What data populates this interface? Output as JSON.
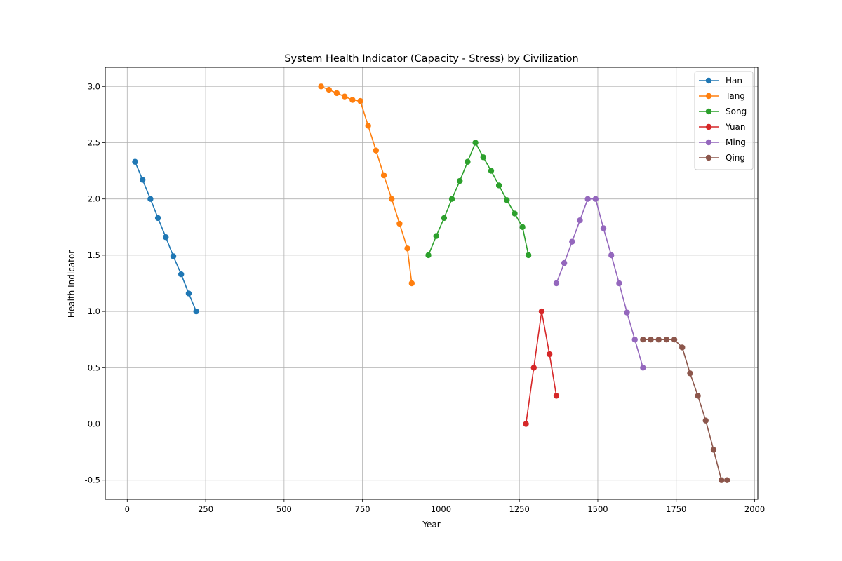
{
  "chart_data": {
    "type": "line",
    "title": "System Health Indicator (Capacity - Stress) by Civilization",
    "xlabel": "Year",
    "ylabel": "Health Indicator",
    "xlim": [
      -70,
      2010
    ],
    "ylim": [
      -0.67,
      3.17
    ],
    "xticks": [
      0,
      250,
      500,
      750,
      1000,
      1250,
      1500,
      1750,
      2000
    ],
    "yticks": [
      -0.5,
      0.0,
      0.5,
      1.0,
      1.5,
      2.0,
      2.5,
      3.0
    ],
    "grid": true,
    "legend_position": "top-right",
    "series": [
      {
        "name": "Han",
        "color": "#1f77b4",
        "x": [
          25,
          49,
          74,
          98,
          123,
          147,
          172,
          196,
          220
        ],
        "y": [
          2.33,
          2.17,
          2.0,
          1.83,
          1.66,
          1.49,
          1.33,
          1.16,
          1.0
        ]
      },
      {
        "name": "Tang",
        "color": "#ff7f0e",
        "x": [
          618,
          643,
          668,
          693,
          718,
          743,
          768,
          793,
          818,
          843,
          868,
          893,
          907
        ],
        "y": [
          3.0,
          2.97,
          2.94,
          2.91,
          2.88,
          2.87,
          2.65,
          2.43,
          2.21,
          2.0,
          1.78,
          1.56,
          1.25
        ]
      },
      {
        "name": "Song",
        "color": "#2ca02c",
        "x": [
          960,
          985,
          1010,
          1035,
          1060,
          1085,
          1110,
          1135,
          1160,
          1185,
          1210,
          1235,
          1260,
          1279
        ],
        "y": [
          1.5,
          1.67,
          1.83,
          2.0,
          2.16,
          2.33,
          2.5,
          2.37,
          2.25,
          2.12,
          1.99,
          1.87,
          1.75,
          1.5
        ]
      },
      {
        "name": "Yuan",
        "color": "#d62728",
        "x": [
          1271,
          1296,
          1321,
          1346,
          1368
        ],
        "y": [
          0.0,
          0.5,
          1.0,
          0.62,
          0.25
        ]
      },
      {
        "name": "Ming",
        "color": "#9467bd",
        "x": [
          1368,
          1393,
          1418,
          1443,
          1468,
          1493,
          1518,
          1543,
          1568,
          1593,
          1618,
          1644
        ],
        "y": [
          1.25,
          1.43,
          1.62,
          1.81,
          2.0,
          2.0,
          1.74,
          1.5,
          1.25,
          0.99,
          0.75,
          0.5
        ]
      },
      {
        "name": "Qing",
        "color": "#8c564b",
        "x": [
          1644,
          1669,
          1694,
          1719,
          1744,
          1769,
          1794,
          1819,
          1844,
          1869,
          1894,
          1912
        ],
        "y": [
          0.75,
          0.75,
          0.75,
          0.75,
          0.75,
          0.68,
          0.45,
          0.25,
          0.03,
          -0.23,
          -0.5,
          -0.5
        ]
      }
    ]
  }
}
